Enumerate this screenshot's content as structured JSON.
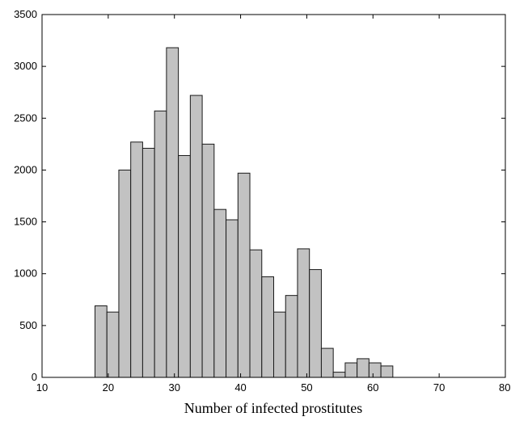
{
  "chart_data": {
    "type": "bar",
    "title": "",
    "xlabel": "Number of infected prostitutes",
    "ylabel": "",
    "xlim": [
      10,
      80
    ],
    "ylim": [
      0,
      3500
    ],
    "xticks": [
      "10",
      "20",
      "30",
      "40",
      "50",
      "60",
      "70",
      "80"
    ],
    "yticks": [
      "0",
      "500",
      "1000",
      "1500",
      "2000",
      "2500",
      "3000",
      "3500"
    ],
    "bin_width": 1.8,
    "grid": false,
    "bar_color": "#c2c2c2",
    "bars": [
      {
        "x": 18.9,
        "value": 690
      },
      {
        "x": 20.7,
        "value": 630
      },
      {
        "x": 22.5,
        "value": 2000
      },
      {
        "x": 24.3,
        "value": 2270
      },
      {
        "x": 26.1,
        "value": 2210
      },
      {
        "x": 27.9,
        "value": 2570
      },
      {
        "x": 29.7,
        "value": 3180
      },
      {
        "x": 31.5,
        "value": 2140
      },
      {
        "x": 33.3,
        "value": 2720
      },
      {
        "x": 35.1,
        "value": 2250
      },
      {
        "x": 36.9,
        "value": 1620
      },
      {
        "x": 38.7,
        "value": 1520
      },
      {
        "x": 40.5,
        "value": 1970
      },
      {
        "x": 42.3,
        "value": 1230
      },
      {
        "x": 44.1,
        "value": 970
      },
      {
        "x": 45.9,
        "value": 630
      },
      {
        "x": 47.7,
        "value": 790
      },
      {
        "x": 49.5,
        "value": 1240
      },
      {
        "x": 51.3,
        "value": 1040
      },
      {
        "x": 53.1,
        "value": 280
      },
      {
        "x": 54.9,
        "value": 50
      },
      {
        "x": 56.7,
        "value": 140
      },
      {
        "x": 58.5,
        "value": 180
      },
      {
        "x": 60.3,
        "value": 140
      },
      {
        "x": 62.1,
        "value": 110
      }
    ]
  }
}
